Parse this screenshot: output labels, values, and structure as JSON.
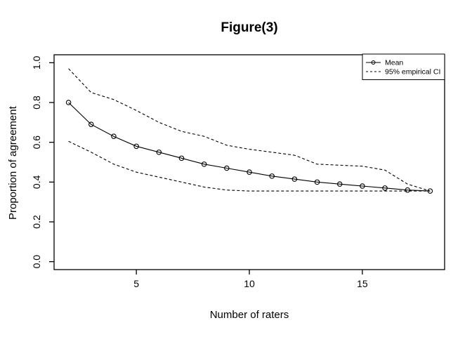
{
  "figure": {
    "title": "Figure(3)",
    "xlabel": "Number of raters",
    "ylabel": "Proportion of agreement"
  },
  "legend": {
    "position": "top-right",
    "items": [
      {
        "label": "Mean",
        "line": "solid",
        "marker": "circle"
      },
      {
        "label": "95% empirical CI",
        "line": "dashed",
        "marker": "none"
      }
    ]
  },
  "chart_data": {
    "type": "line",
    "title": "Figure(3)",
    "xlabel": "Number of raters",
    "ylabel": "Proportion of agreement",
    "x": [
      2,
      3,
      4,
      5,
      6,
      7,
      8,
      9,
      10,
      11,
      12,
      13,
      14,
      15,
      16,
      17,
      18
    ],
    "series": [
      {
        "name": "Mean",
        "style": "solid",
        "marker": "circle",
        "values": [
          0.8,
          0.69,
          0.63,
          0.58,
          0.55,
          0.52,
          0.49,
          0.47,
          0.45,
          0.43,
          0.415,
          0.4,
          0.39,
          0.38,
          0.37,
          0.36,
          0.355
        ]
      },
      {
        "name": "95% empirical CI upper",
        "style": "dashed",
        "marker": "none",
        "values": [
          0.97,
          0.85,
          0.815,
          0.76,
          0.7,
          0.655,
          0.63,
          0.585,
          0.565,
          0.55,
          0.535,
          0.49,
          0.485,
          0.48,
          0.46,
          0.39,
          0.355
        ]
      },
      {
        "name": "95% empirical CI lower",
        "style": "dashed",
        "marker": "none",
        "values": [
          0.605,
          0.55,
          0.49,
          0.45,
          0.425,
          0.4,
          0.375,
          0.36,
          0.355,
          0.355,
          0.355,
          0.355,
          0.355,
          0.355,
          0.355,
          0.355,
          0.355
        ]
      }
    ],
    "xticks": [
      5,
      10,
      15
    ],
    "yticks": [
      0.0,
      0.2,
      0.4,
      0.6,
      0.8,
      1.0
    ],
    "xlim": [
      1.36,
      18.64
    ],
    "ylim": [
      -0.04,
      1.04
    ],
    "grid": false,
    "legend_position": "top-right",
    "colors": {
      "line": "#000000",
      "background": "#ffffff"
    }
  }
}
